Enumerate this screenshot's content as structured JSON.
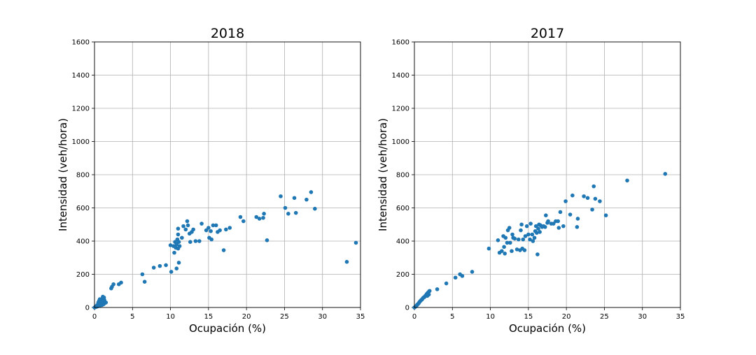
{
  "chart_data": [
    {
      "type": "scatter",
      "title": "2018",
      "xlabel": "Ocupación (%)",
      "ylabel": "Intensidad (veh/hora)",
      "xlim": [
        0,
        35
      ],
      "ylim": [
        0,
        1600
      ],
      "xticks": [
        "0",
        "5",
        "10",
        "15",
        "20",
        "25",
        "30",
        "35"
      ],
      "yticks": [
        "0",
        "200",
        "400",
        "600",
        "800",
        "1000",
        "1200",
        "1400",
        "1600"
      ],
      "grid": true,
      "color": "#1f77b4",
      "points": [
        [
          0,
          0
        ],
        [
          0.1,
          2
        ],
        [
          0.15,
          5
        ],
        [
          0.2,
          8
        ],
        [
          0.25,
          4
        ],
        [
          0.3,
          10
        ],
        [
          0.35,
          14
        ],
        [
          0.4,
          6
        ],
        [
          0.45,
          18
        ],
        [
          0.5,
          12
        ],
        [
          0.55,
          22
        ],
        [
          0.6,
          16
        ],
        [
          0.65,
          28
        ],
        [
          0.7,
          10
        ],
        [
          0.75,
          30
        ],
        [
          0.8,
          20
        ],
        [
          0.85,
          38
        ],
        [
          0.9,
          25
        ],
        [
          0.95,
          45
        ],
        [
          1.0,
          15
        ],
        [
          1.0,
          35
        ],
        [
          1.05,
          55
        ],
        [
          1.1,
          30
        ],
        [
          1.1,
          65
        ],
        [
          1.15,
          40
        ],
        [
          1.2,
          20
        ],
        [
          1.2,
          50
        ],
        [
          1.25,
          60
        ],
        [
          1.3,
          25
        ],
        [
          1.3,
          45
        ],
        [
          1.35,
          35
        ],
        [
          1.4,
          28
        ],
        [
          1.5,
          30
        ],
        [
          0.5,
          30
        ],
        [
          0.6,
          40
        ],
        [
          0.7,
          50
        ],
        [
          2.2,
          115
        ],
        [
          2.3,
          125
        ],
        [
          2.5,
          140
        ],
        [
          3.2,
          140
        ],
        [
          3.5,
          150
        ],
        [
          6.3,
          200
        ],
        [
          6.6,
          155
        ],
        [
          7.8,
          240
        ],
        [
          8.6,
          250
        ],
        [
          9.4,
          255
        ],
        [
          10.0,
          375
        ],
        [
          10.1,
          215
        ],
        [
          10.4,
          370
        ],
        [
          10.5,
          330
        ],
        [
          10.6,
          395
        ],
        [
          10.7,
          360
        ],
        [
          10.8,
          235
        ],
        [
          10.8,
          380
        ],
        [
          10.9,
          410
        ],
        [
          11.0,
          440
        ],
        [
          11.0,
          475
        ],
        [
          11.0,
          355
        ],
        [
          11.1,
          270
        ],
        [
          11.1,
          395
        ],
        [
          11.2,
          370
        ],
        [
          11.5,
          420
        ],
        [
          11.7,
          490
        ],
        [
          12.0,
          470
        ],
        [
          12.2,
          520
        ],
        [
          12.3,
          495
        ],
        [
          12.5,
          445
        ],
        [
          12.6,
          395
        ],
        [
          12.8,
          455
        ],
        [
          13.0,
          470
        ],
        [
          13.3,
          400
        ],
        [
          13.8,
          400
        ],
        [
          14.1,
          505
        ],
        [
          14.7,
          465
        ],
        [
          15.0,
          480
        ],
        [
          15.1,
          420
        ],
        [
          15.3,
          460
        ],
        [
          15.4,
          410
        ],
        [
          15.6,
          495
        ],
        [
          16.0,
          495
        ],
        [
          16.2,
          455
        ],
        [
          16.5,
          465
        ],
        [
          17.0,
          345
        ],
        [
          17.3,
          470
        ],
        [
          17.8,
          480
        ],
        [
          19.2,
          545
        ],
        [
          19.6,
          520
        ],
        [
          21.3,
          545
        ],
        [
          21.7,
          535
        ],
        [
          22.2,
          540
        ],
        [
          22.3,
          565
        ],
        [
          22.7,
          405
        ],
        [
          24.5,
          670
        ],
        [
          25.1,
          600
        ],
        [
          25.5,
          565
        ],
        [
          26.3,
          660
        ],
        [
          26.5,
          570
        ],
        [
          27.9,
          650
        ],
        [
          28.5,
          695
        ],
        [
          29.0,
          595
        ],
        [
          33.2,
          275
        ],
        [
          34.4,
          390
        ]
      ]
    },
    {
      "type": "scatter",
      "title": "2017",
      "xlabel": "Ocupación (%)",
      "ylabel": "Intensidad (veh/hora)",
      "xlim": [
        0,
        35
      ],
      "ylim": [
        0,
        1600
      ],
      "xticks": [
        "0",
        "5",
        "10",
        "15",
        "20",
        "25",
        "30",
        "35"
      ],
      "yticks": [
        "0",
        "200",
        "400",
        "600",
        "800",
        "1000",
        "1200",
        "1400",
        "1600"
      ],
      "grid": true,
      "color": "#1f77b4",
      "points": [
        [
          0,
          0
        ],
        [
          0.1,
          3
        ],
        [
          0.2,
          8
        ],
        [
          0.3,
          12
        ],
        [
          0.4,
          18
        ],
        [
          0.5,
          22
        ],
        [
          0.6,
          28
        ],
        [
          0.7,
          35
        ],
        [
          0.8,
          40
        ],
        [
          0.9,
          45
        ],
        [
          1.0,
          48
        ],
        [
          1.1,
          55
        ],
        [
          1.2,
          60
        ],
        [
          1.3,
          62
        ],
        [
          1.4,
          68
        ],
        [
          1.5,
          72
        ],
        [
          1.6,
          80
        ],
        [
          1.7,
          85
        ],
        [
          1.8,
          90
        ],
        [
          1.9,
          95
        ],
        [
          2.0,
          100
        ],
        [
          1.9,
          78
        ],
        [
          1.7,
          70
        ],
        [
          3.0,
          110
        ],
        [
          4.2,
          145
        ],
        [
          5.4,
          180
        ],
        [
          6.0,
          200
        ],
        [
          6.3,
          190
        ],
        [
          7.6,
          215
        ],
        [
          9.8,
          355
        ],
        [
          11.0,
          405
        ],
        [
          11.2,
          330
        ],
        [
          11.5,
          340
        ],
        [
          11.7,
          430
        ],
        [
          11.8,
          365
        ],
        [
          11.9,
          325
        ],
        [
          12.0,
          420
        ],
        [
          12.2,
          390
        ],
        [
          12.3,
          465
        ],
        [
          12.5,
          480
        ],
        [
          12.6,
          390
        ],
        [
          12.8,
          340
        ],
        [
          12.9,
          440
        ],
        [
          13.0,
          420
        ],
        [
          13.2,
          415
        ],
        [
          13.5,
          350
        ],
        [
          13.7,
          410
        ],
        [
          13.9,
          345
        ],
        [
          14.0,
          465
        ],
        [
          14.1,
          500
        ],
        [
          14.2,
          355
        ],
        [
          14.3,
          410
        ],
        [
          14.5,
          345
        ],
        [
          14.6,
          430
        ],
        [
          14.8,
          490
        ],
        [
          15.0,
          440
        ],
        [
          15.2,
          410
        ],
        [
          15.3,
          505
        ],
        [
          15.5,
          440
        ],
        [
          15.6,
          400
        ],
        [
          15.8,
          420
        ],
        [
          15.9,
          460
        ],
        [
          16.0,
          490
        ],
        [
          16.1,
          450
        ],
        [
          16.2,
          320
        ],
        [
          16.3,
          475
        ],
        [
          16.4,
          500
        ],
        [
          16.5,
          455
        ],
        [
          16.6,
          495
        ],
        [
          16.8,
          485
        ],
        [
          17.0,
          490
        ],
        [
          17.2,
          485
        ],
        [
          17.3,
          555
        ],
        [
          17.5,
          510
        ],
        [
          17.6,
          520
        ],
        [
          18.0,
          505
        ],
        [
          18.3,
          505
        ],
        [
          18.6,
          520
        ],
        [
          18.9,
          520
        ],
        [
          19.0,
          480
        ],
        [
          19.2,
          575
        ],
        [
          19.6,
          490
        ],
        [
          19.9,
          640
        ],
        [
          20.5,
          560
        ],
        [
          20.8,
          675
        ],
        [
          21.4,
          485
        ],
        [
          21.5,
          535
        ],
        [
          22.3,
          670
        ],
        [
          22.8,
          660
        ],
        [
          23.4,
          590
        ],
        [
          23.6,
          730
        ],
        [
          23.8,
          655
        ],
        [
          24.4,
          640
        ],
        [
          25.2,
          555
        ],
        [
          28.0,
          765
        ],
        [
          33.0,
          805
        ]
      ]
    }
  ]
}
